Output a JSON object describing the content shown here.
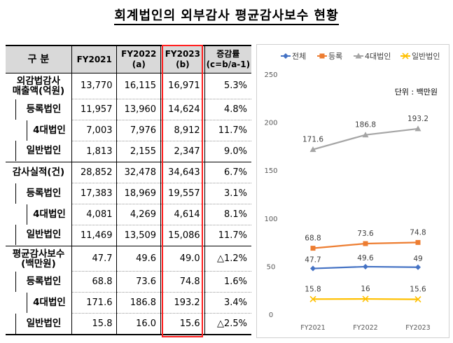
{
  "title": "회계법인의 외부감사 평균감사보수 현황",
  "table": {
    "headers": [
      "구 분",
      "FY2021",
      "FY2022\n(a)",
      "FY2023\n(b)",
      "증감률\n(c=b/a-1)"
    ],
    "rows": [
      {
        "label": "외감법감사\n매출액(억원)",
        "level": 0,
        "values": [
          "13,770",
          "16,115",
          "16,971",
          "5.3%"
        ]
      },
      {
        "label": "등록법인",
        "level": 1,
        "values": [
          "11,957",
          "13,960",
          "14,624",
          "4.8%"
        ]
      },
      {
        "label": "4대법인",
        "level": 2,
        "values": [
          "7,003",
          "7,976",
          "8,912",
          "11.7%"
        ]
      },
      {
        "label": "일반법인",
        "level": 1,
        "values": [
          "1,813",
          "2,155",
          "2,347",
          "9.0%"
        ]
      },
      {
        "label": "감사실적(건)",
        "level": 0,
        "values": [
          "28,852",
          "32,478",
          "34,643",
          "6.7%"
        ]
      },
      {
        "label": "등록법인",
        "level": 1,
        "values": [
          "17,383",
          "18,969",
          "19,557",
          "3.1%"
        ]
      },
      {
        "label": "4대법인",
        "level": 2,
        "values": [
          "4,081",
          "4,269",
          "4,614",
          "8.1%"
        ]
      },
      {
        "label": "일반법인",
        "level": 1,
        "values": [
          "11,469",
          "13,509",
          "15,086",
          "11.7%"
        ]
      },
      {
        "label": "평균감사보수\n(백만원)",
        "level": 0,
        "values": [
          "47.7",
          "49.6",
          "49.0",
          "△1.2%"
        ]
      },
      {
        "label": "등록법인",
        "level": 1,
        "values": [
          "68.8",
          "73.6",
          "74.8",
          "1.6%"
        ]
      },
      {
        "label": "4대법인",
        "level": 2,
        "values": [
          "171.6",
          "186.8",
          "193.2",
          "3.4%"
        ]
      },
      {
        "label": "일반법인",
        "level": 1,
        "values": [
          "15.8",
          "16.0",
          "15.6",
          "△2.5%"
        ]
      }
    ]
  },
  "chart_data": {
    "type": "line",
    "x": [
      "FY2021",
      "FY2022",
      "FY2023"
    ],
    "ylim": [
      0,
      250
    ],
    "yticks": [
      0,
      50,
      100,
      150,
      200,
      250
    ],
    "annotation": "단위 : 백만원",
    "legend_position": "top",
    "grid": false,
    "series": [
      {
        "name": "전체",
        "color": "#4472c4",
        "marker": "diamond",
        "values": [
          47.7,
          49.6,
          49
        ],
        "labels": [
          "47.7",
          "49.6",
          "49"
        ]
      },
      {
        "name": "등록",
        "color": "#ed7d31",
        "marker": "square",
        "values": [
          68.8,
          73.6,
          74.8
        ],
        "labels": [
          "68.8",
          "73.6",
          "74.8"
        ]
      },
      {
        "name": "4대법인",
        "color": "#a5a5a5",
        "marker": "triangle",
        "values": [
          171.6,
          186.8,
          193.2
        ],
        "labels": [
          "171.6",
          "186.8",
          "193.2"
        ]
      },
      {
        "name": "일반법인",
        "color": "#ffc000",
        "marker": "x",
        "values": [
          15.8,
          16,
          15.6
        ],
        "labels": [
          "15.8",
          "16",
          "15.6"
        ]
      }
    ]
  }
}
